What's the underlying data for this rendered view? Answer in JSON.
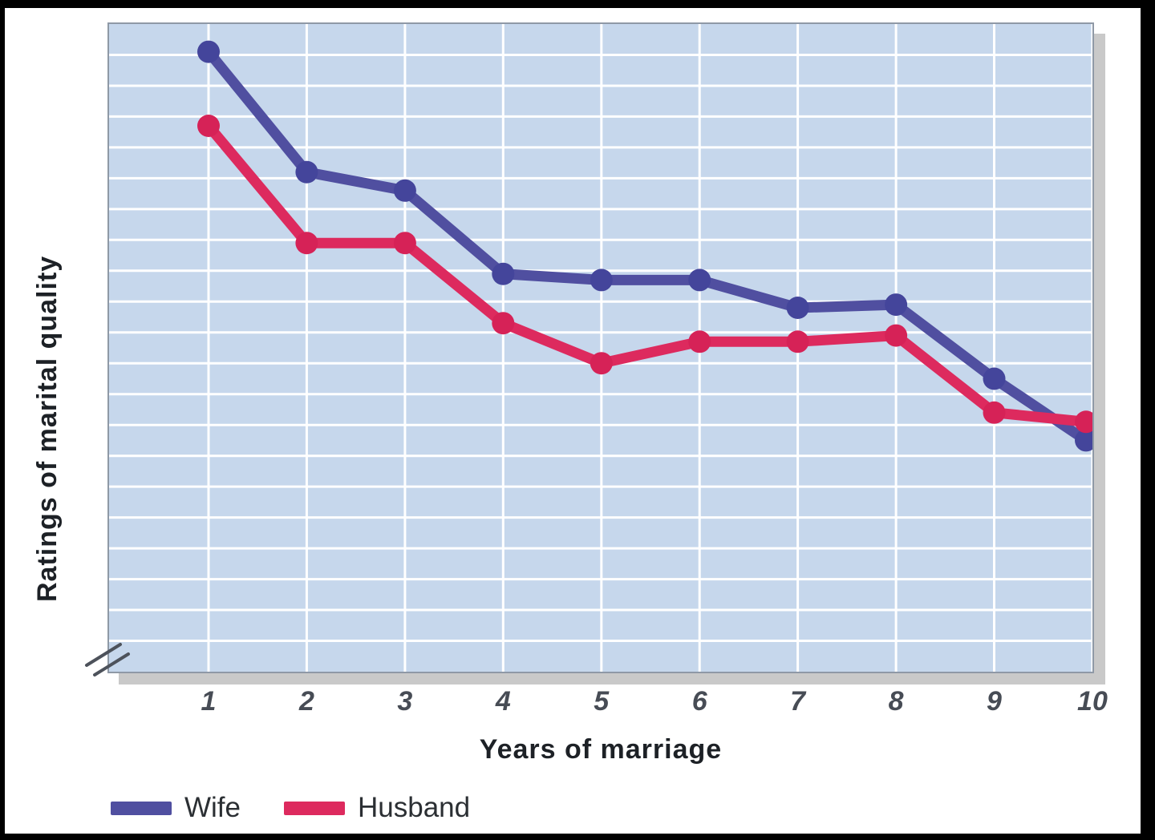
{
  "chart_data": {
    "type": "line",
    "title": "",
    "xlabel": "Years of marriage",
    "ylabel": "Ratings of marital quality",
    "x": [
      1,
      2,
      3,
      4,
      5,
      6,
      7,
      8,
      9,
      10
    ],
    "x_tick_labels": [
      "1",
      "2",
      "3",
      "4",
      "5",
      "6",
      "7",
      "8",
      "9",
      "10"
    ],
    "series": [
      {
        "name": "Wife",
        "color": "#504fa0",
        "marker_color": "#44459b",
        "values": [
          20.1,
          16.2,
          15.6,
          12.9,
          12.7,
          12.7,
          11.8,
          11.9,
          9.5,
          7.5
        ]
      },
      {
        "name": "Husband",
        "color": "#dd2a5e",
        "marker_color": "#d62257",
        "values": [
          17.7,
          13.9,
          13.9,
          11.3,
          10.0,
          10.7,
          10.7,
          10.9,
          8.4,
          8.1
        ]
      }
    ],
    "ylim": [
      0,
      21
    ],
    "y_numeric_labels_visible": false,
    "y_axis_break": true,
    "grid": true,
    "grid_rows": 21,
    "legend_position": "bottom-left"
  },
  "colors": {
    "plot_background": "#c6d7ec",
    "gridline": "#ffffff",
    "plot_border": "#8f99a6",
    "drop_shadow": "#c9c9c9",
    "frame": "#000000",
    "tick_text": "#474c55",
    "title_text": "#1d2126"
  }
}
